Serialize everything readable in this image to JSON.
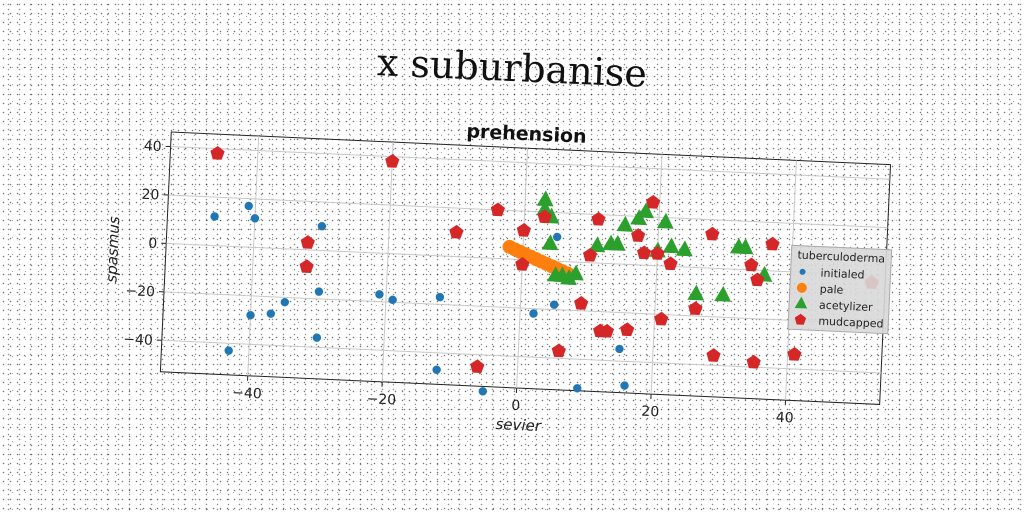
{
  "suptitle": "x suburbanise",
  "chart_data": {
    "type": "scatter",
    "title": "prehension",
    "xlabel": "sevier",
    "ylabel": "spasmus",
    "xlim": [
      -53,
      54
    ],
    "ylim": [
      -53,
      46
    ],
    "xticks": [
      -40,
      -20,
      0,
      20,
      40
    ],
    "yticks": [
      -40,
      -20,
      0,
      20,
      40
    ],
    "tick_labels": {
      "x": [
        "−40",
        "−20",
        "0",
        "20",
        "40"
      ],
      "y": [
        "−40",
        "−20",
        "0",
        "20",
        "40"
      ]
    },
    "grid": true,
    "legend": {
      "title": "tuberculoderma",
      "placement": "center-right"
    },
    "series": [
      {
        "name": "initialed",
        "marker": "circle",
        "color": "#1f77b4",
        "x": [
          -46,
          -43,
          -41,
          -40,
          -40,
          -37,
          -35,
          -30,
          -30,
          -30,
          -21,
          -19,
          -12,
          -12,
          -5,
          2,
          5,
          5,
          9,
          15,
          16
        ],
        "y": [
          12,
          -43,
          17,
          -28,
          12,
          -27,
          -22,
          10,
          -36,
          -17,
          -17,
          -19,
          -17,
          -47,
          -55,
          -22,
          -18,
          10,
          -52,
          -35,
          -50
        ]
      },
      {
        "name": "pale",
        "marker": "circle",
        "color": "#ff7f0e",
        "x": [
          -2,
          -1.2,
          -0.4,
          0.4,
          1.2,
          2.0,
          2.8,
          3.6,
          4.4,
          5.2,
          6.0,
          6.8
        ],
        "y": [
          5,
          4.1,
          3.2,
          2.3,
          1.4,
          0.5,
          -0.4,
          -1.3,
          -2.2,
          -3.1,
          -4.0,
          -4.9
        ]
      },
      {
        "name": "acetylizer",
        "marker": "triangle",
        "color": "#2ca02c",
        "x": [
          3,
          3,
          4,
          4,
          5,
          6,
          7,
          8,
          11,
          13,
          14,
          15,
          17,
          18,
          20,
          21,
          22,
          24,
          26,
          30,
          32,
          33,
          36
        ],
        "y": [
          21,
          25,
          18,
          7,
          -6,
          -6,
          -7,
          -5,
          7,
          8,
          8,
          16,
          19,
          22,
          6,
          18,
          8,
          7,
          -11,
          -11,
          9,
          9,
          -2
        ],
        "note": ""
      },
      {
        "name": "mudcapped",
        "marker": "pentagon",
        "color": "#d62728",
        "x": [
          -46,
          -32,
          -32,
          -20,
          -10,
          -6,
          -4,
          0,
          0,
          3,
          6,
          9,
          10,
          11,
          12,
          13,
          16,
          17,
          18,
          19,
          20,
          21,
          22,
          26,
          28,
          29,
          34,
          35,
          35,
          37,
          41,
          52
        ],
        "y": [
          38,
          3,
          -7,
          38,
          10,
          -45,
          20,
          12,
          -2,
          18,
          -37,
          -17,
          3,
          18,
          -28,
          -28,
          -27,
          12,
          5,
          26,
          5,
          -22,
          1,
          -17,
          14,
          -36,
          2,
          -4,
          -38,
          11,
          -34,
          -3
        ]
      }
    ]
  }
}
